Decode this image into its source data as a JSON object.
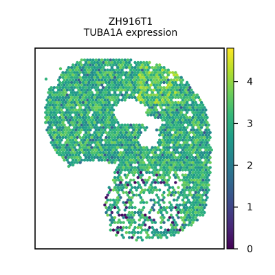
{
  "chart_data": {
    "type": "scatter",
    "title": "ZH916T1",
    "subtitle": "TUBA1A expression",
    "xlabel": "",
    "ylabel": "",
    "colorbar": {
      "colormap": "viridis",
      "range": [
        0,
        4.8
      ],
      "ticks": [
        "0",
        "1",
        "2",
        "3",
        "4"
      ],
      "tick_values": [
        0,
        1,
        2,
        3,
        4
      ]
    },
    "typical_value": 3.0,
    "low_value_spots": "scattered in lower-left lobe",
    "grid": false,
    "legend": "colorbar right"
  },
  "colors": {
    "viridis": [
      "#440154",
      "#482878",
      "#3e4989",
      "#31688e",
      "#26828e",
      "#1f9e89",
      "#35b779",
      "#6ece58",
      "#b5de2b",
      "#fde725"
    ]
  }
}
